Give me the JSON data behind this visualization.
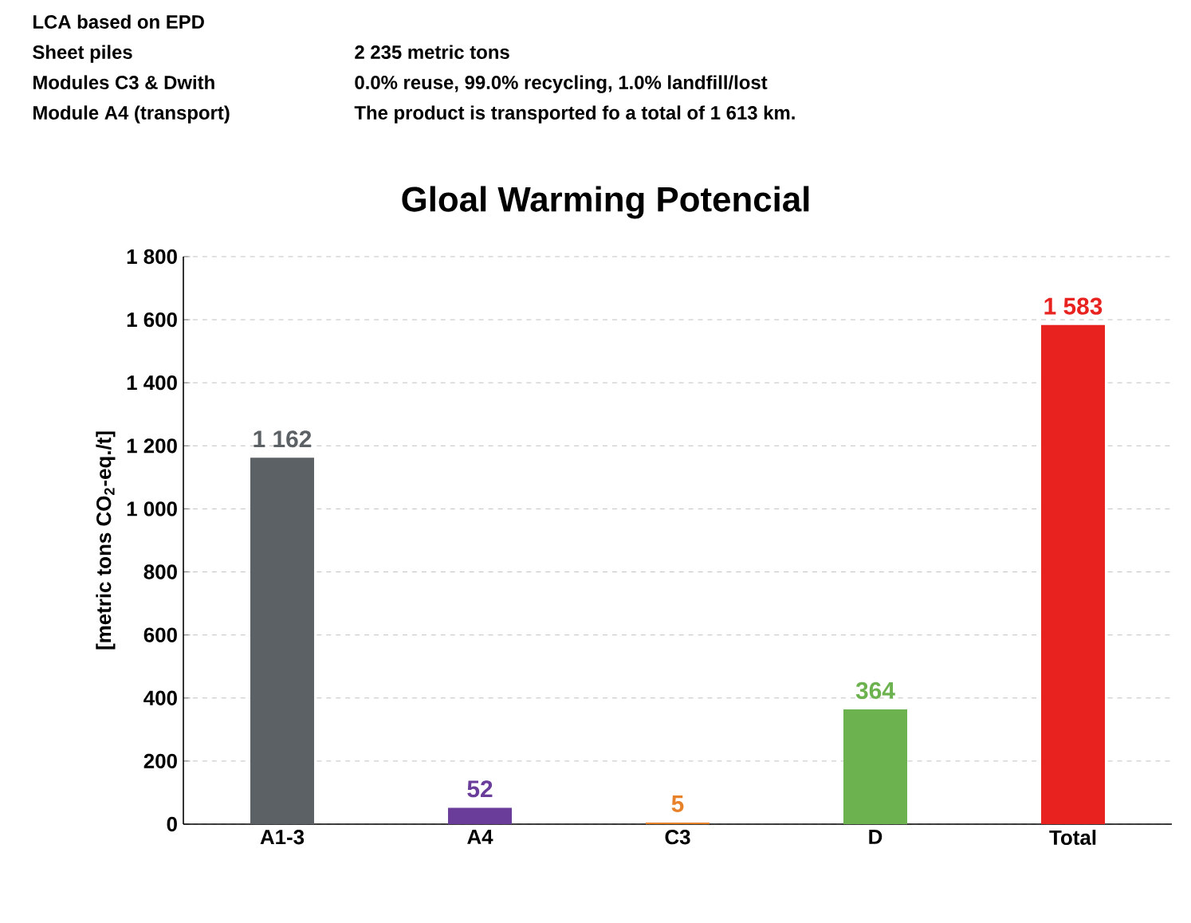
{
  "chart_data": {
    "type": "bar",
    "title": "Gloal Warming Potencial",
    "ylabel": "[metric tons CO$_{2}$-eq./t]",
    "categories": [
      "A1-3",
      "A4",
      "C3",
      "D",
      "Total"
    ],
    "values": [
      1162,
      52,
      5,
      364,
      1583
    ],
    "colors": [
      "#5b6165",
      "#6a3d9a",
      "#e8822a",
      "#6cb24e",
      "#e8231f"
    ],
    "value_labels": [
      "1 162",
      "52",
      "5",
      "364",
      "1 583"
    ],
    "ylim": [
      0,
      1800
    ],
    "yticks": [
      0,
      200,
      400,
      600,
      800,
      {
        "value": 1000,
        "label": "1 000"
      },
      {
        "value": 1200,
        "label": "1 200"
      },
      {
        "value": 1400,
        "label": "1 400"
      },
      {
        "value": 1600,
        "label": "1 600"
      },
      {
        "value": 1800,
        "label": "1 800"
      }
    ],
    "grid": "y",
    "annotations": [
      "LCA based on EPD",
      "Sheet piles",
      "2 235 metric tons",
      "Modules C3 & Dwith",
      "0.0% reuse, 99.0% recycling, 1.0% landfill/lost",
      "Module A4 (transport)",
      "The product is transported fo a total of 1 613 km."
    ]
  }
}
